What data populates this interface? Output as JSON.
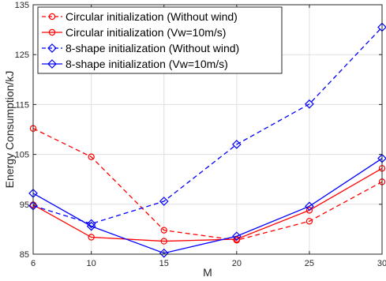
{
  "chart_data": {
    "type": "line",
    "xlabel": "M",
    "ylabel": "Energy Consumption/kJ",
    "x": [
      6,
      10,
      15,
      20,
      25,
      30
    ],
    "xlim": [
      6,
      30
    ],
    "ylim": [
      85,
      135
    ],
    "xticks": [
      6,
      10,
      15,
      20,
      25,
      30
    ],
    "yticks": [
      85,
      95,
      105,
      115,
      125,
      135
    ],
    "grid": true,
    "legend_position": "top-left",
    "series": [
      {
        "name": "Circular initialization (Without wind)",
        "values": [
          110.2,
          104.5,
          89.8,
          87.8,
          91.6,
          99.5
        ],
        "color": "#ff0000",
        "dash": "dashed",
        "marker": "circle"
      },
      {
        "name": "Circular initialization (Vw=10m/s)",
        "values": [
          94.9,
          88.4,
          87.6,
          88.0,
          93.8,
          102.2
        ],
        "color": "#ff0000",
        "dash": "solid",
        "marker": "circle"
      },
      {
        "name": "8-shape initialization (Without wind)",
        "values": [
          94.7,
          91.1,
          95.6,
          107.0,
          115.1,
          130.5
        ],
        "color": "#0000ff",
        "dash": "dashed",
        "marker": "diamond"
      },
      {
        "name": "8-shape initialization (Vw=10m/s)",
        "values": [
          97.2,
          90.6,
          85.2,
          88.6,
          94.6,
          104.2
        ],
        "color": "#0000ff",
        "dash": "solid",
        "marker": "diamond"
      }
    ]
  }
}
